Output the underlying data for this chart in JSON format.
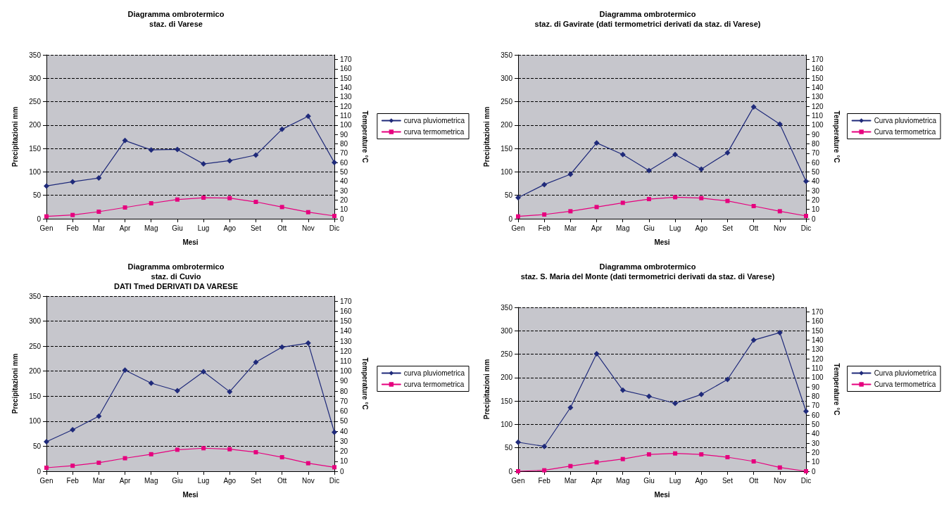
{
  "chart_data": [
    {
      "type": "line",
      "title": "Diagramma ombrotermico",
      "subtitle": "staz. di Varese",
      "xlabel": "Mesi",
      "ylabel": "Precipitazioni mm",
      "y2label": "Temperature °C",
      "categories": [
        "Gen",
        "Feb",
        "Mar",
        "Apr",
        "Mag",
        "Giu",
        "Lug",
        "Ago",
        "Set",
        "Ott",
        "Nov",
        "Dic"
      ],
      "series": [
        {
          "name": "curva pluviometrica",
          "color": "#1f2a7a",
          "marker": "diamond",
          "values": [
            70,
            79,
            87,
            167,
            147,
            148,
            117,
            124,
            136,
            191,
            219,
            120
          ]
        },
        {
          "name": "curva termometrica",
          "color": "#e6007e",
          "marker": "square",
          "axis": "y2",
          "values": [
            2.5,
            4,
            7.5,
            12,
            16.5,
            20.5,
            22.5,
            22,
            18,
            12.5,
            7,
            3
          ]
        }
      ],
      "ylim": [
        0,
        350
      ],
      "yticks": [
        0,
        50,
        100,
        150,
        200,
        250,
        300,
        350
      ],
      "y2lim": [
        0,
        175
      ],
      "y2ticks": [
        0,
        10,
        20,
        30,
        40,
        50,
        60,
        70,
        80,
        90,
        100,
        110,
        120,
        130,
        140,
        150,
        160,
        170
      ],
      "grid": "y",
      "legend": "right",
      "line_style": "solid"
    },
    {
      "type": "line",
      "title": "Diagramma ombrotermico",
      "subtitle": "staz. di Gavirate (dati termometrici derivati da staz. di Varese)",
      "xlabel": "Mesi",
      "ylabel": "Precipitazioni mm",
      "y2label": "Temperature °C",
      "categories": [
        "Gen",
        "Feb",
        "Mar",
        "Apr",
        "Mag",
        "Giu",
        "Lug",
        "Ago",
        "Set",
        "Ott",
        "Nov",
        "Dic"
      ],
      "series": [
        {
          "name": "Curva pluviometrica",
          "color": "#1f2a7a",
          "marker": "diamond",
          "values": [
            45,
            73,
            95,
            162,
            137,
            103,
            137,
            106,
            141,
            239,
            202,
            80
          ]
        },
        {
          "name": "Curva termometrica",
          "color": "#e6007e",
          "marker": "square",
          "axis": "y2",
          "values": [
            2.5,
            4.5,
            8,
            12.5,
            17,
            21,
            23,
            22,
            19,
            13.5,
            8,
            3
          ]
        }
      ],
      "ylim": [
        0,
        350
      ],
      "yticks": [
        0,
        50,
        100,
        150,
        200,
        250,
        300,
        350
      ],
      "y2lim": [
        0,
        175
      ],
      "y2ticks": [
        0,
        10,
        20,
        30,
        40,
        50,
        60,
        70,
        80,
        90,
        100,
        110,
        120,
        130,
        140,
        150,
        160,
        170
      ],
      "grid": "y",
      "legend": "right",
      "line_style": "solid"
    },
    {
      "type": "line",
      "title": "Diagramma ombrotermico",
      "subtitle": "staz. di Cuvio\nDATI Tmed DERIVATI DA VARESE",
      "xlabel": "Mesi",
      "ylabel": "Precipitazioni mm",
      "y2label": "Temperature °C",
      "categories": [
        "Gen",
        "Feb",
        "Mar",
        "Apr",
        "Mag",
        "Giu",
        "Lug",
        "Ago",
        "Set",
        "Ott",
        "Nov",
        "Dic"
      ],
      "series": [
        {
          "name": "curva pluviometrica",
          "color": "#1f2a7a",
          "marker": "diamond",
          "values": [
            59,
            83,
            110,
            202,
            176,
            161,
            199,
            159,
            218,
            248,
            256,
            78
          ]
        },
        {
          "name": "curva termometrica",
          "color": "#e6007e",
          "marker": "square",
          "axis": "y2",
          "values": [
            3.5,
            5.5,
            8.5,
            13,
            17,
            21.5,
            23,
            22,
            19,
            14,
            8,
            4
          ]
        }
      ],
      "ylim": [
        0,
        350
      ],
      "yticks": [
        0,
        50,
        100,
        150,
        200,
        250,
        300,
        350
      ],
      "y2lim": [
        0,
        175
      ],
      "y2ticks": [
        0,
        10,
        20,
        30,
        40,
        50,
        60,
        70,
        80,
        90,
        100,
        110,
        120,
        130,
        140,
        150,
        160,
        170
      ],
      "grid": "y",
      "legend": "right",
      "line_style": "solid"
    },
    {
      "type": "line",
      "title": "Diagramma ombrotermico",
      "subtitle": "staz. S. Maria del Monte (dati termometrici derivati da staz. di Varese)",
      "xlabel": "Mesi",
      "ylabel": "Precipitazioni mm",
      "y2label": "Temperature °C",
      "categories": [
        "Gen",
        "Feb",
        "Mar",
        "Apr",
        "Mag",
        "Giu",
        "Lug",
        "Ago",
        "Set",
        "Ott",
        "Nov",
        "Dic"
      ],
      "series": [
        {
          "name": "Curva pluviometrica",
          "color": "#1f2a7a",
          "marker": "diamond",
          "values": [
            62,
            53,
            136,
            251,
            173,
            160,
            145,
            164,
            196,
            280,
            296,
            128
          ]
        },
        {
          "name": "Curva termometrica",
          "color": "#e6007e",
          "marker": "square",
          "axis": "y2",
          "values": [
            0,
            1,
            5.5,
            9.5,
            13,
            18,
            19,
            18,
            15,
            10.5,
            4,
            0
          ]
        }
      ],
      "ylim": [
        0,
        350
      ],
      "yticks": [
        0,
        50,
        100,
        150,
        200,
        250,
        300,
        350
      ],
      "y2lim": [
        0,
        175
      ],
      "y2ticks": [
        0,
        10,
        20,
        30,
        40,
        50,
        60,
        70,
        80,
        90,
        100,
        110,
        120,
        130,
        140,
        150,
        160,
        170
      ],
      "grid": "y",
      "legend": "right",
      "line_style": "solid"
    }
  ]
}
